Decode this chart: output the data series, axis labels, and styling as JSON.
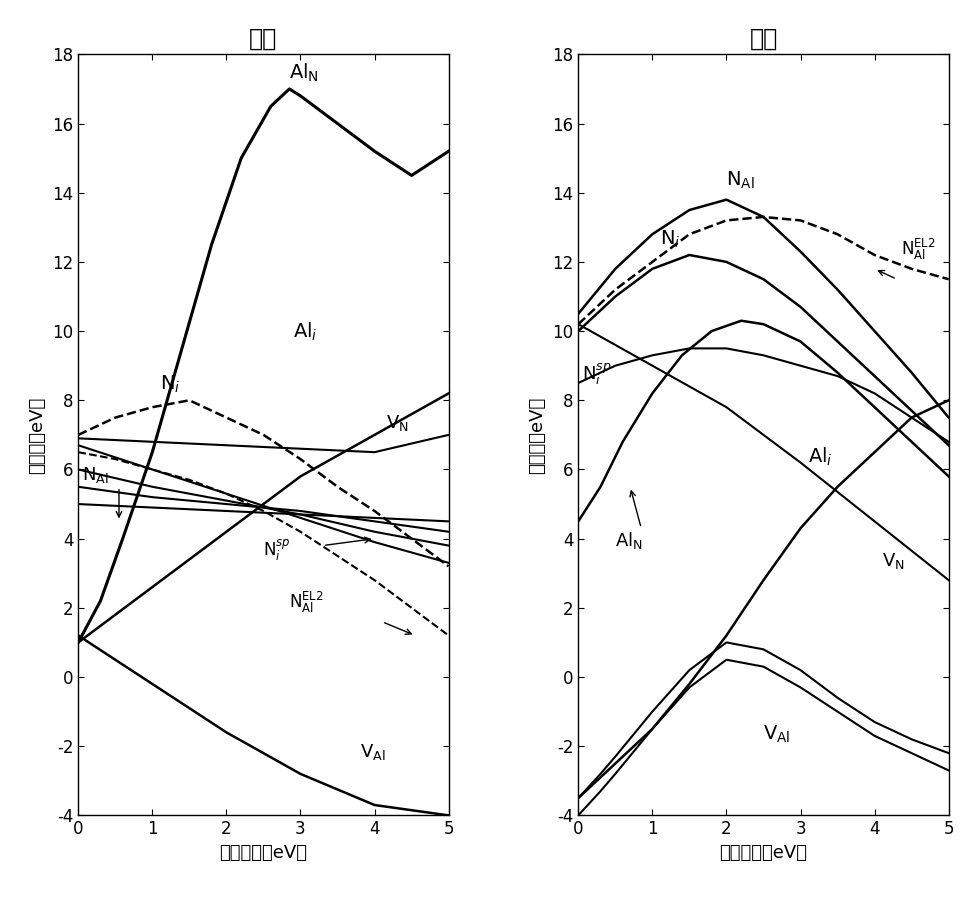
{
  "left_title": "富氮",
  "right_title": "富铝",
  "xlabel": "费米能级（eV）",
  "ylabel": "形成能（eV）",
  "xlim": [
    0,
    5
  ],
  "ylim": [
    -4,
    18
  ],
  "xticks": [
    0,
    1,
    2,
    3,
    4,
    5
  ],
  "yticks": [
    -4,
    -2,
    0,
    2,
    4,
    6,
    8,
    10,
    12,
    14,
    16,
    18
  ],
  "left_curves": {
    "Al_N": {
      "x": [
        0,
        0.3,
        0.6,
        1.0,
        1.4,
        1.8,
        2.2,
        2.6,
        2.85,
        3.0,
        3.5,
        4.0,
        4.5,
        5.0
      ],
      "y": [
        1.0,
        2.2,
        4.0,
        6.5,
        9.5,
        12.5,
        15.0,
        16.5,
        17.0,
        16.8,
        16.0,
        15.2,
        14.5,
        15.2
      ],
      "style": "solid",
      "lw": 2.2
    },
    "Al_i": {
      "x": [
        0,
        1,
        2,
        3,
        4,
        5
      ],
      "y": [
        1.0,
        2.6,
        4.2,
        5.8,
        7.0,
        8.2
      ],
      "style": "solid",
      "lw": 1.8
    },
    "N_i": {
      "x": [
        0,
        0.5,
        1.0,
        1.5,
        2.0,
        2.5,
        3.0,
        3.5,
        4.0,
        4.5,
        5.0
      ],
      "y": [
        7.0,
        7.5,
        7.8,
        8.0,
        7.5,
        7.0,
        6.3,
        5.5,
        4.8,
        4.0,
        3.2
      ],
      "style": "dashed",
      "lw": 1.8
    },
    "V_N": {
      "x": [
        0,
        1,
        2,
        3,
        4,
        5
      ],
      "y": [
        6.9,
        6.8,
        6.7,
        6.6,
        6.5,
        7.0
      ],
      "style": "solid",
      "lw": 1.5
    },
    "N_Al_1": {
      "x": [
        0,
        1,
        2,
        3,
        4,
        5
      ],
      "y": [
        6.0,
        5.5,
        5.1,
        4.7,
        4.2,
        3.8
      ],
      "style": "solid",
      "lw": 1.5
    },
    "N_Al_2": {
      "x": [
        0,
        1,
        2,
        3,
        4,
        5
      ],
      "y": [
        5.5,
        5.2,
        5.0,
        4.8,
        4.5,
        4.2
      ],
      "style": "solid",
      "lw": 1.5
    },
    "N_Al_3": {
      "x": [
        0,
        1,
        2,
        3,
        4,
        5
      ],
      "y": [
        5.0,
        4.9,
        4.8,
        4.7,
        4.6,
        4.5
      ],
      "style": "solid",
      "lw": 1.5
    },
    "N_i_sp": {
      "x": [
        0,
        1,
        2,
        3,
        4,
        5
      ],
      "y": [
        6.7,
        6.0,
        5.3,
        4.6,
        3.9,
        3.3
      ],
      "style": "solid",
      "lw": 1.5
    },
    "N_Al_EL2": {
      "x": [
        0,
        0.5,
        1.0,
        1.5,
        2.0,
        2.5,
        3.0,
        3.5,
        4.0,
        4.5,
        5.0
      ],
      "y": [
        6.5,
        6.3,
        6.0,
        5.7,
        5.3,
        4.8,
        4.2,
        3.5,
        2.8,
        2.0,
        1.2
      ],
      "style": "dashed",
      "lw": 1.5
    },
    "V_Al": {
      "x": [
        0,
        1,
        2,
        3,
        4,
        5
      ],
      "y": [
        1.2,
        -0.2,
        -1.6,
        -2.8,
        -3.7,
        -4.0
      ],
      "style": "solid",
      "lw": 1.8
    }
  },
  "right_curves": {
    "N_Al": {
      "x": [
        0,
        0.5,
        1.0,
        1.5,
        2.0,
        2.5,
        3.0,
        3.5,
        4.0,
        4.5,
        5.0
      ],
      "y": [
        10.5,
        11.8,
        12.8,
        13.5,
        13.8,
        13.3,
        12.3,
        11.2,
        10.0,
        8.8,
        7.5
      ],
      "style": "solid",
      "lw": 1.8
    },
    "N_Al_EL2": {
      "x": [
        0,
        0.5,
        1.0,
        1.5,
        2.0,
        2.5,
        3.0,
        3.5,
        4.0,
        4.5,
        5.0
      ],
      "y": [
        10.2,
        11.2,
        12.0,
        12.8,
        13.2,
        13.3,
        13.2,
        12.8,
        12.2,
        11.8,
        11.5
      ],
      "style": "dashed",
      "lw": 1.8
    },
    "N_i": {
      "x": [
        0,
        0.5,
        1.0,
        1.5,
        2.0,
        2.5,
        3.0,
        3.5,
        4.0,
        4.5,
        5.0
      ],
      "y": [
        10.0,
        11.0,
        11.8,
        12.2,
        12.0,
        11.5,
        10.7,
        9.7,
        8.7,
        7.7,
        6.7
      ],
      "style": "solid",
      "lw": 1.8
    },
    "N_i_sp": {
      "x": [
        0,
        0.5,
        1.0,
        1.5,
        2.0,
        2.5,
        3.0,
        3.5,
        4.0,
        4.5,
        5.0
      ],
      "y": [
        8.5,
        9.0,
        9.3,
        9.5,
        9.5,
        9.3,
        9.0,
        8.7,
        8.2,
        7.5,
        6.8
      ],
      "style": "solid",
      "lw": 1.5
    },
    "Al_N": {
      "x": [
        0,
        0.3,
        0.6,
        1.0,
        1.4,
        1.8,
        2.2,
        2.5,
        3.0,
        3.5,
        4.0,
        4.5,
        5.0
      ],
      "y": [
        4.5,
        5.5,
        6.8,
        8.2,
        9.3,
        10.0,
        10.3,
        10.2,
        9.7,
        8.8,
        7.8,
        6.8,
        5.8
      ],
      "style": "solid",
      "lw": 1.8
    },
    "Al_i": {
      "x": [
        0,
        0.5,
        1.0,
        1.5,
        2.0,
        2.5,
        3.0,
        3.5,
        4.0,
        4.5,
        5.0
      ],
      "y": [
        -3.5,
        -2.5,
        -1.5,
        -0.2,
        1.2,
        2.8,
        4.3,
        5.5,
        6.5,
        7.5,
        8.0
      ],
      "style": "solid",
      "lw": 1.8
    },
    "V_N": {
      "x": [
        0,
        1,
        2,
        3,
        4,
        5
      ],
      "y": [
        10.2,
        9.0,
        7.8,
        6.2,
        4.5,
        2.8
      ],
      "style": "solid",
      "lw": 1.5
    },
    "V_Al_1": {
      "x": [
        0,
        0.3,
        0.5,
        1.0,
        1.5,
        2.0,
        2.5,
        3.0,
        3.5,
        4.0,
        4.5,
        5.0
      ],
      "y": [
        -3.5,
        -2.8,
        -2.3,
        -1.0,
        0.2,
        1.0,
        0.8,
        0.2,
        -0.6,
        -1.3,
        -1.8,
        -2.2
      ],
      "style": "solid",
      "lw": 1.5
    },
    "V_Al_2": {
      "x": [
        0,
        0.3,
        0.5,
        1.0,
        1.5,
        2.0,
        2.5,
        3.0,
        3.5,
        4.0,
        4.5,
        5.0
      ],
      "y": [
        -4.0,
        -3.3,
        -2.8,
        -1.5,
        -0.3,
        0.5,
        0.3,
        -0.3,
        -1.0,
        -1.7,
        -2.2,
        -2.7
      ],
      "style": "solid",
      "lw": 1.5
    }
  },
  "title_fontsize": 17,
  "label_fontsize": 13,
  "tick_fontsize": 12,
  "annot_fontsize": 13
}
